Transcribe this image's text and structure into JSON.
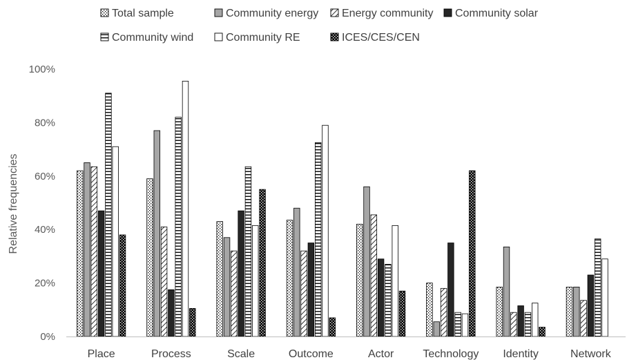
{
  "chart_data": {
    "type": "bar",
    "title": "",
    "xlabel": "",
    "ylabel": "Relative frequencies",
    "ylim": [
      0,
      1
    ],
    "y_tick_values": [
      0,
      0.2,
      0.4,
      0.6,
      0.8,
      1.0
    ],
    "y_tick_labels": [
      "0%",
      "20%",
      "40%",
      "60%",
      "80%",
      "100%"
    ],
    "grid": false,
    "legend_position": "top",
    "categories": [
      "Place",
      "Process",
      "Scale",
      "Outcome",
      "Actor",
      "Technology",
      "Identity",
      "Network"
    ],
    "series": [
      {
        "name": "Total sample",
        "pattern": "dots",
        "values": [
          0.62,
          0.59,
          0.43,
          0.435,
          0.42,
          0.2,
          0.185,
          0.185
        ]
      },
      {
        "name": "Community energy",
        "pattern": "gray",
        "values": [
          0.65,
          0.77,
          0.37,
          0.48,
          0.56,
          0.055,
          0.335,
          0.185
        ]
      },
      {
        "name": "Energy community",
        "pattern": "diagonal",
        "values": [
          0.635,
          0.41,
          0.32,
          0.32,
          0.455,
          0.18,
          0.09,
          0.135
        ]
      },
      {
        "name": "Community solar",
        "pattern": "black",
        "values": [
          0.47,
          0.175,
          0.47,
          0.35,
          0.29,
          0.35,
          0.115,
          0.23
        ]
      },
      {
        "name": "Community wind",
        "pattern": "horizontal",
        "values": [
          0.91,
          0.82,
          0.635,
          0.725,
          0.27,
          0.09,
          0.09,
          0.365
        ]
      },
      {
        "name": "Community RE",
        "pattern": "white",
        "values": [
          0.71,
          0.955,
          0.415,
          0.79,
          0.415,
          0.085,
          0.125,
          0.29
        ]
      },
      {
        "name": "ICES/CES/CEN",
        "pattern": "checker",
        "values": [
          0.38,
          0.105,
          0.55,
          0.07,
          0.17,
          0.62,
          0.035,
          0
        ]
      }
    ]
  },
  "colors": {
    "axis": "#bfbfbf",
    "bar_edge": "#000000",
    "gray_fill": "#a6a6a6",
    "black_fill": "#262626"
  }
}
